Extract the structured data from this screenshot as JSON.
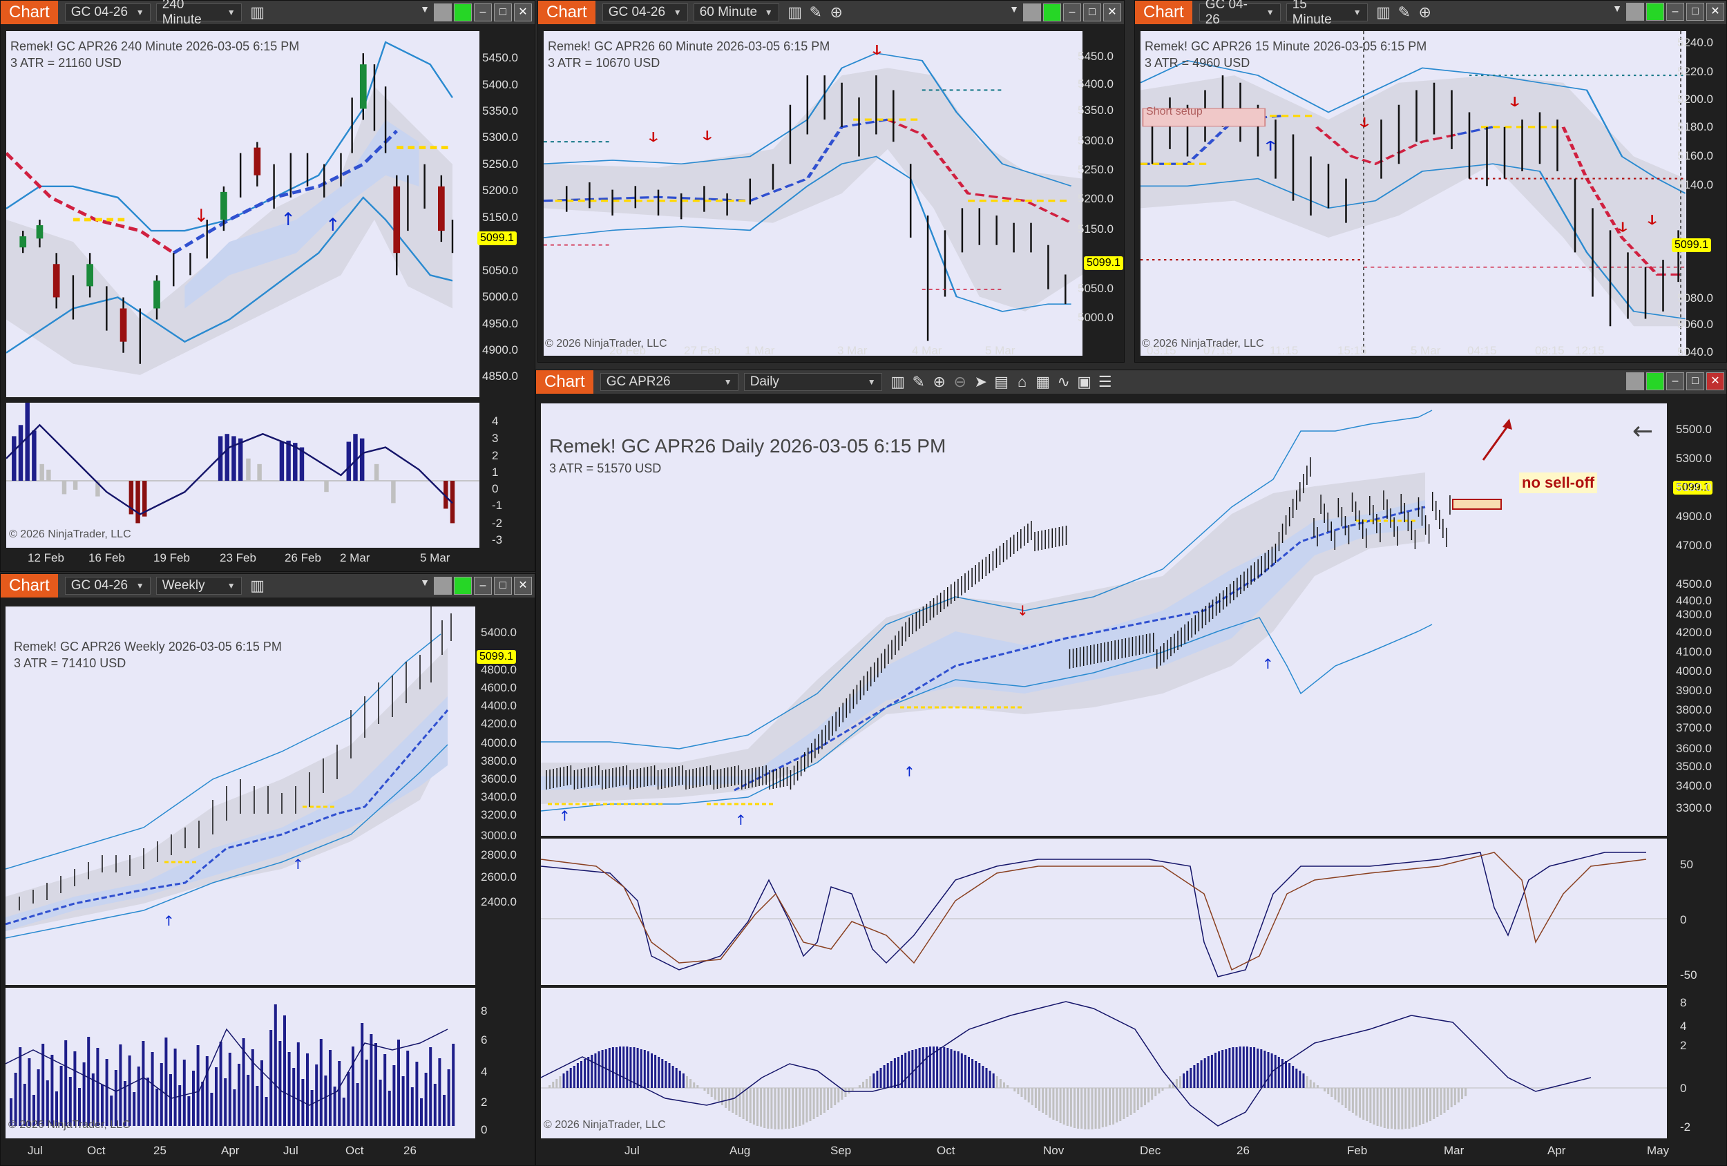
{
  "windows": {
    "w240": {
      "tab": "Chart",
      "instrument": "GC 04-26",
      "interval": "240 Minute",
      "info_line1": "Remek!  GC APR26  240 Minute  2026-03-05 6:15 PM",
      "info_line2": "3 ATR = 21160 USD",
      "price": "5099.1",
      "copyright": "© 2026 NinjaTrader, LLC",
      "yticks": [
        "5450.0",
        "5400.0",
        "5350.0",
        "5300.0",
        "5250.0",
        "5200.0",
        "5150.0",
        "5050.0",
        "5000.0",
        "4950.0",
        "4900.0",
        "4850.0"
      ],
      "osc_ticks": [
        "4",
        "3",
        "2",
        "1",
        "0",
        "-1",
        "-2",
        "-3"
      ],
      "xticks": [
        "12 Feb",
        "16 Feb",
        "19 Feb",
        "23 Feb",
        "26 Feb",
        "2 Mar",
        "5 Mar"
      ]
    },
    "w60": {
      "tab": "Chart",
      "instrument": "GC 04-26",
      "interval": "60 Minute",
      "info_line1": "Remek!  GC APR26  60 Minute  2026-03-05 6:15 PM",
      "info_line2": "3 ATR = 10670 USD",
      "price": "5099.1",
      "copyright": "© 2026 NinjaTrader, LLC",
      "yticks": [
        "5450.0",
        "5400.0",
        "5350.0",
        "5300.0",
        "5250.0",
        "5200.0",
        "5150.0",
        "5050.0",
        "5000.0"
      ],
      "xticks": [
        "26 Feb",
        "27 Feb",
        "1 Mar",
        "3 Mar",
        "4 Mar",
        "5 Mar"
      ]
    },
    "w15": {
      "tab": "Chart",
      "instrument": "GC 04-26",
      "interval": "15 Minute",
      "info_line1": "Remek!  GC APR26  15 Minute  2026-03-05 6:15 PM",
      "info_line2": "3 ATR = 4960 USD",
      "marker_label": "Short setup",
      "price": "5099.1",
      "copyright": "© 2026 NinjaTrader, LLC",
      "yticks": [
        "5240.0",
        "5220.0",
        "5200.0",
        "5180.0",
        "5160.0",
        "5140.0",
        "5080.0",
        "5060.0",
        "5040.0"
      ],
      "xticks": [
        "03:15",
        "07:15",
        "11:15",
        "15:15",
        "5 Mar",
        "04:15",
        "08:15",
        "12:15"
      ]
    },
    "wWeekly": {
      "tab": "Chart",
      "instrument": "GC 04-26",
      "interval": "Weekly",
      "info_line1": "Remek!  GC APR26  Weekly  2026-03-05 6:15 PM",
      "info_line2": "3 ATR = 71410 USD",
      "price": "5099.1",
      "copyright": "© 2026 NinjaTrader, LLC",
      "yticks": [
        "5400.0",
        "4800.0",
        "4600.0",
        "4400.0",
        "4200.0",
        "4000.0",
        "3800.0",
        "3600.0",
        "3400.0",
        "3200.0",
        "3000.0",
        "2800.0",
        "2600.0",
        "2400.0"
      ],
      "osc_ticks": [
        "8",
        "6",
        "4",
        "2",
        "0"
      ],
      "xticks": [
        "Jul",
        "Oct",
        "25",
        "Apr",
        "Jul",
        "Oct",
        "26"
      ]
    },
    "wDaily": {
      "tab": "Chart",
      "instrument": "GC APR26",
      "interval": "Daily",
      "info_line1": "Remek!  GC APR26  Daily  2026-03-05 6:15 PM",
      "info_line2": "3 ATR = 51570 USD",
      "annotation": "no sell-off",
      "price": "5099.1",
      "copyright": "© 2026 NinjaTrader, LLC",
      "yticks": [
        "5500.0",
        "5300.0",
        "5100.0",
        "4900.0",
        "4700.0",
        "4500.0",
        "4400.0",
        "4300.0",
        "4200.0",
        "4100.0",
        "4000.0",
        "3900.0",
        "3800.0",
        "3700.0",
        "3600.0",
        "3500.0",
        "3400.0",
        "3300.0"
      ],
      "osc1_ticks": [
        "50",
        "0",
        "-50"
      ],
      "osc2_ticks": [
        "8",
        "4",
        "2",
        "0",
        "-2"
      ],
      "xticks": [
        "Jul",
        "Aug",
        "Sep",
        "Oct",
        "Nov",
        "Dec",
        "26",
        "Feb",
        "Mar",
        "Apr",
        "May"
      ]
    }
  },
  "colors": {
    "tab": "#e55a1c",
    "panel": "#e8e8f8",
    "bull": "#1a8a3a",
    "bear": "#9a1010",
    "band": "#2a8ad0",
    "price_tag": "#ffff00"
  }
}
